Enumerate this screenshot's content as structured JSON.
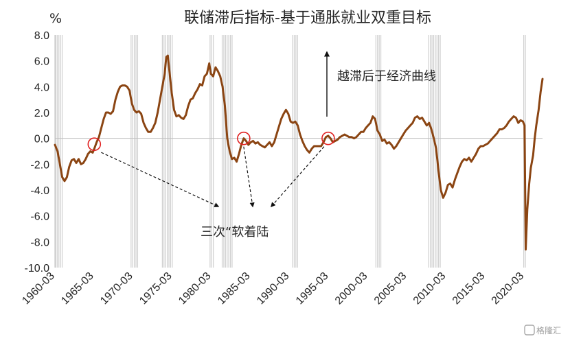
{
  "chart_data": {
    "type": "line",
    "title": "联储滞后指标-基于通胀就业双重目标",
    "unit": "%",
    "ylim": [
      -10.0,
      8.0
    ],
    "y_ticks": [
      "8.0",
      "6.0",
      "4.0",
      "2.0",
      "0.0",
      "-2.0",
      "-4.0",
      "-6.0",
      "-8.0",
      "-10.0"
    ],
    "x_range": [
      1960.17,
      2022.5
    ],
    "x_ticks": [
      "1960-03",
      "1965-03",
      "1970-03",
      "1975-03",
      "1980-03",
      "1985-03",
      "1990-03",
      "1995-03",
      "2000-03",
      "2005-03",
      "2010-03",
      "2015-03",
      "2020-03"
    ],
    "grid": false,
    "legend": "none",
    "series": [
      {
        "color": "#8b4513",
        "points": [
          [
            1960.17,
            -0.5
          ],
          [
            1960.5,
            -1.0
          ],
          [
            1960.8,
            -2.0
          ],
          [
            1961.1,
            -3.0
          ],
          [
            1961.4,
            -3.3
          ],
          [
            1961.7,
            -3.0
          ],
          [
            1962.0,
            -2.2
          ],
          [
            1962.3,
            -1.7
          ],
          [
            1962.6,
            -1.6
          ],
          [
            1962.9,
            -1.9
          ],
          [
            1963.2,
            -1.6
          ],
          [
            1963.5,
            -2.0
          ],
          [
            1963.8,
            -1.9
          ],
          [
            1964.1,
            -1.6
          ],
          [
            1964.4,
            -1.2
          ],
          [
            1964.7,
            -1.0
          ],
          [
            1965.0,
            -1.1
          ],
          [
            1965.2,
            -0.8
          ],
          [
            1965.5,
            -0.3
          ],
          [
            1965.8,
            0.1
          ],
          [
            1966.1,
            0.8
          ],
          [
            1966.4,
            1.5
          ],
          [
            1966.7,
            2.0
          ],
          [
            1967.0,
            2.0
          ],
          [
            1967.3,
            1.9
          ],
          [
            1967.6,
            2.1
          ],
          [
            1967.9,
            3.0
          ],
          [
            1968.2,
            3.6
          ],
          [
            1968.5,
            4.0
          ],
          [
            1968.8,
            4.1
          ],
          [
            1969.1,
            4.1
          ],
          [
            1969.4,
            4.0
          ],
          [
            1969.7,
            3.7
          ],
          [
            1970.0,
            2.7
          ],
          [
            1970.3,
            2.2
          ],
          [
            1970.6,
            2.0
          ],
          [
            1970.9,
            2.1
          ],
          [
            1971.2,
            1.9
          ],
          [
            1971.5,
            1.2
          ],
          [
            1971.8,
            0.8
          ],
          [
            1972.1,
            0.5
          ],
          [
            1972.4,
            0.5
          ],
          [
            1972.7,
            0.8
          ],
          [
            1973.0,
            1.2
          ],
          [
            1973.3,
            2.0
          ],
          [
            1973.6,
            3.0
          ],
          [
            1973.9,
            4.0
          ],
          [
            1974.2,
            5.0
          ],
          [
            1974.4,
            6.3
          ],
          [
            1974.6,
            6.4
          ],
          [
            1974.8,
            5.2
          ],
          [
            1975.1,
            3.5
          ],
          [
            1975.4,
            2.2
          ],
          [
            1975.7,
            1.7
          ],
          [
            1976.0,
            1.8
          ],
          [
            1976.3,
            1.6
          ],
          [
            1976.6,
            1.5
          ],
          [
            1976.9,
            1.8
          ],
          [
            1977.2,
            2.5
          ],
          [
            1977.5,
            3.0
          ],
          [
            1977.8,
            3.1
          ],
          [
            1978.1,
            3.5
          ],
          [
            1978.4,
            3.8
          ],
          [
            1978.7,
            4.2
          ],
          [
            1979.0,
            4.1
          ],
          [
            1979.3,
            4.8
          ],
          [
            1979.6,
            5.0
          ],
          [
            1979.9,
            5.8
          ],
          [
            1980.1,
            5.0
          ],
          [
            1980.4,
            4.8
          ],
          [
            1980.7,
            5.5
          ],
          [
            1981.0,
            5.2
          ],
          [
            1981.3,
            4.8
          ],
          [
            1981.6,
            4.0
          ],
          [
            1981.9,
            2.5
          ],
          [
            1982.2,
            0.0
          ],
          [
            1982.5,
            -1.0
          ],
          [
            1982.8,
            -1.6
          ],
          [
            1983.1,
            -1.5
          ],
          [
            1983.4,
            -1.8
          ],
          [
            1983.7,
            -1.2
          ],
          [
            1984.0,
            -0.5
          ],
          [
            1984.3,
            0.0
          ],
          [
            1984.6,
            -0.2
          ],
          [
            1984.9,
            -0.5
          ],
          [
            1985.2,
            -0.3
          ],
          [
            1985.5,
            -0.2
          ],
          [
            1985.8,
            -0.4
          ],
          [
            1986.1,
            -0.3
          ],
          [
            1986.4,
            -0.5
          ],
          [
            1986.7,
            -0.6
          ],
          [
            1987.0,
            -0.7
          ],
          [
            1987.3,
            -0.5
          ],
          [
            1987.6,
            -0.3
          ],
          [
            1987.9,
            -0.6
          ],
          [
            1988.2,
            -0.3
          ],
          [
            1988.5,
            0.3
          ],
          [
            1988.8,
            0.9
          ],
          [
            1989.1,
            1.5
          ],
          [
            1989.4,
            1.9
          ],
          [
            1989.7,
            2.2
          ],
          [
            1990.0,
            1.9
          ],
          [
            1990.3,
            1.3
          ],
          [
            1990.6,
            1.2
          ],
          [
            1990.9,
            1.3
          ],
          [
            1991.2,
            1.0
          ],
          [
            1991.5,
            0.3
          ],
          [
            1991.8,
            -0.2
          ],
          [
            1992.1,
            -0.6
          ],
          [
            1992.4,
            -0.9
          ],
          [
            1992.7,
            -1.1
          ],
          [
            1993.0,
            -0.8
          ],
          [
            1993.3,
            -0.6
          ],
          [
            1993.6,
            -0.6
          ],
          [
            1993.9,
            -0.6
          ],
          [
            1994.2,
            -0.6
          ],
          [
            1994.5,
            -0.3
          ],
          [
            1994.8,
            0.1
          ],
          [
            1995.1,
            0.2
          ],
          [
            1995.4,
            0.0
          ],
          [
            1995.7,
            -0.3
          ],
          [
            1996.0,
            -0.2
          ],
          [
            1996.3,
            -0.1
          ],
          [
            1996.6,
            0.1
          ],
          [
            1996.9,
            0.2
          ],
          [
            1997.2,
            0.3
          ],
          [
            1997.5,
            0.2
          ],
          [
            1997.8,
            0.1
          ],
          [
            1998.1,
            0.1
          ],
          [
            1998.4,
            0.0
          ],
          [
            1998.7,
            0.1
          ],
          [
            1999.0,
            0.3
          ],
          [
            1999.3,
            0.5
          ],
          [
            1999.6,
            0.5
          ],
          [
            1999.9,
            0.8
          ],
          [
            2000.2,
            1.0
          ],
          [
            2000.5,
            1.2
          ],
          [
            2000.8,
            1.7
          ],
          [
            2001.1,
            1.5
          ],
          [
            2001.4,
            0.6
          ],
          [
            2001.7,
            0.3
          ],
          [
            2002.0,
            -0.2
          ],
          [
            2002.3,
            -0.1
          ],
          [
            2002.6,
            -0.4
          ],
          [
            2002.9,
            -0.3
          ],
          [
            2003.2,
            -0.5
          ],
          [
            2003.5,
            -0.8
          ],
          [
            2003.8,
            -0.6
          ],
          [
            2004.1,
            -0.3
          ],
          [
            2004.4,
            0.0
          ],
          [
            2004.7,
            0.3
          ],
          [
            2005.0,
            0.6
          ],
          [
            2005.3,
            0.8
          ],
          [
            2005.6,
            1.0
          ],
          [
            2005.9,
            1.2
          ],
          [
            2006.2,
            1.6
          ],
          [
            2006.5,
            1.7
          ],
          [
            2006.8,
            1.5
          ],
          [
            2007.1,
            1.6
          ],
          [
            2007.4,
            1.3
          ],
          [
            2007.7,
            1.0
          ],
          [
            2008.0,
            1.2
          ],
          [
            2008.3,
            0.7
          ],
          [
            2008.6,
            0.0
          ],
          [
            2008.9,
            -0.8
          ],
          [
            2009.2,
            -2.5
          ],
          [
            2009.5,
            -4.0
          ],
          [
            2009.8,
            -4.6
          ],
          [
            2010.1,
            -4.2
          ],
          [
            2010.4,
            -3.6
          ],
          [
            2010.7,
            -3.5
          ],
          [
            2011.0,
            -3.8
          ],
          [
            2011.3,
            -3.2
          ],
          [
            2011.6,
            -2.7
          ],
          [
            2011.9,
            -2.2
          ],
          [
            2012.2,
            -1.8
          ],
          [
            2012.5,
            -1.6
          ],
          [
            2012.8,
            -1.7
          ],
          [
            2013.1,
            -1.5
          ],
          [
            2013.4,
            -1.8
          ],
          [
            2013.7,
            -1.5
          ],
          [
            2014.0,
            -1.2
          ],
          [
            2014.3,
            -0.8
          ],
          [
            2014.6,
            -0.6
          ],
          [
            2014.9,
            -0.6
          ],
          [
            2015.2,
            -0.5
          ],
          [
            2015.5,
            -0.4
          ],
          [
            2015.8,
            -0.2
          ],
          [
            2016.1,
            0.0
          ],
          [
            2016.4,
            0.2
          ],
          [
            2016.7,
            0.4
          ],
          [
            2017.0,
            0.7
          ],
          [
            2017.3,
            0.7
          ],
          [
            2017.6,
            0.8
          ],
          [
            2017.9,
            1.0
          ],
          [
            2018.2,
            1.3
          ],
          [
            2018.5,
            1.5
          ],
          [
            2018.8,
            1.7
          ],
          [
            2019.1,
            1.6
          ],
          [
            2019.4,
            1.2
          ],
          [
            2019.7,
            1.4
          ],
          [
            2020.0,
            1.3
          ],
          [
            2020.2,
            1.0
          ],
          [
            2020.35,
            -8.6
          ],
          [
            2020.55,
            -5.5
          ],
          [
            2020.8,
            -3.5
          ],
          [
            2021.0,
            -2.3
          ],
          [
            2021.3,
            -1.3
          ],
          [
            2021.5,
            0.0
          ],
          [
            2021.7,
            1.0
          ],
          [
            2022.0,
            2.2
          ],
          [
            2022.25,
            3.6
          ],
          [
            2022.5,
            4.6
          ]
        ]
      }
    ],
    "recession_shading": [
      [
        1960.25,
        1961.1
      ],
      [
        1969.9,
        1970.9
      ],
      [
        1973.9,
        1975.2
      ],
      [
        1980.0,
        1980.55
      ],
      [
        1981.55,
        1982.9
      ],
      [
        1990.55,
        1991.25
      ],
      [
        2001.2,
        2001.9
      ],
      [
        2007.95,
        2009.5
      ],
      [
        2020.1,
        2020.35
      ]
    ],
    "annotations": {
      "arrow_label": "越滞后于经济曲线",
      "soft_landing_label": "三次“软着陆",
      "soft_landing_points": [
        [
          1965.2,
          -0.45
        ],
        [
          1984.3,
          0.0
        ],
        [
          1995.1,
          0.0
        ]
      ]
    },
    "watermark": "格隆汇"
  }
}
